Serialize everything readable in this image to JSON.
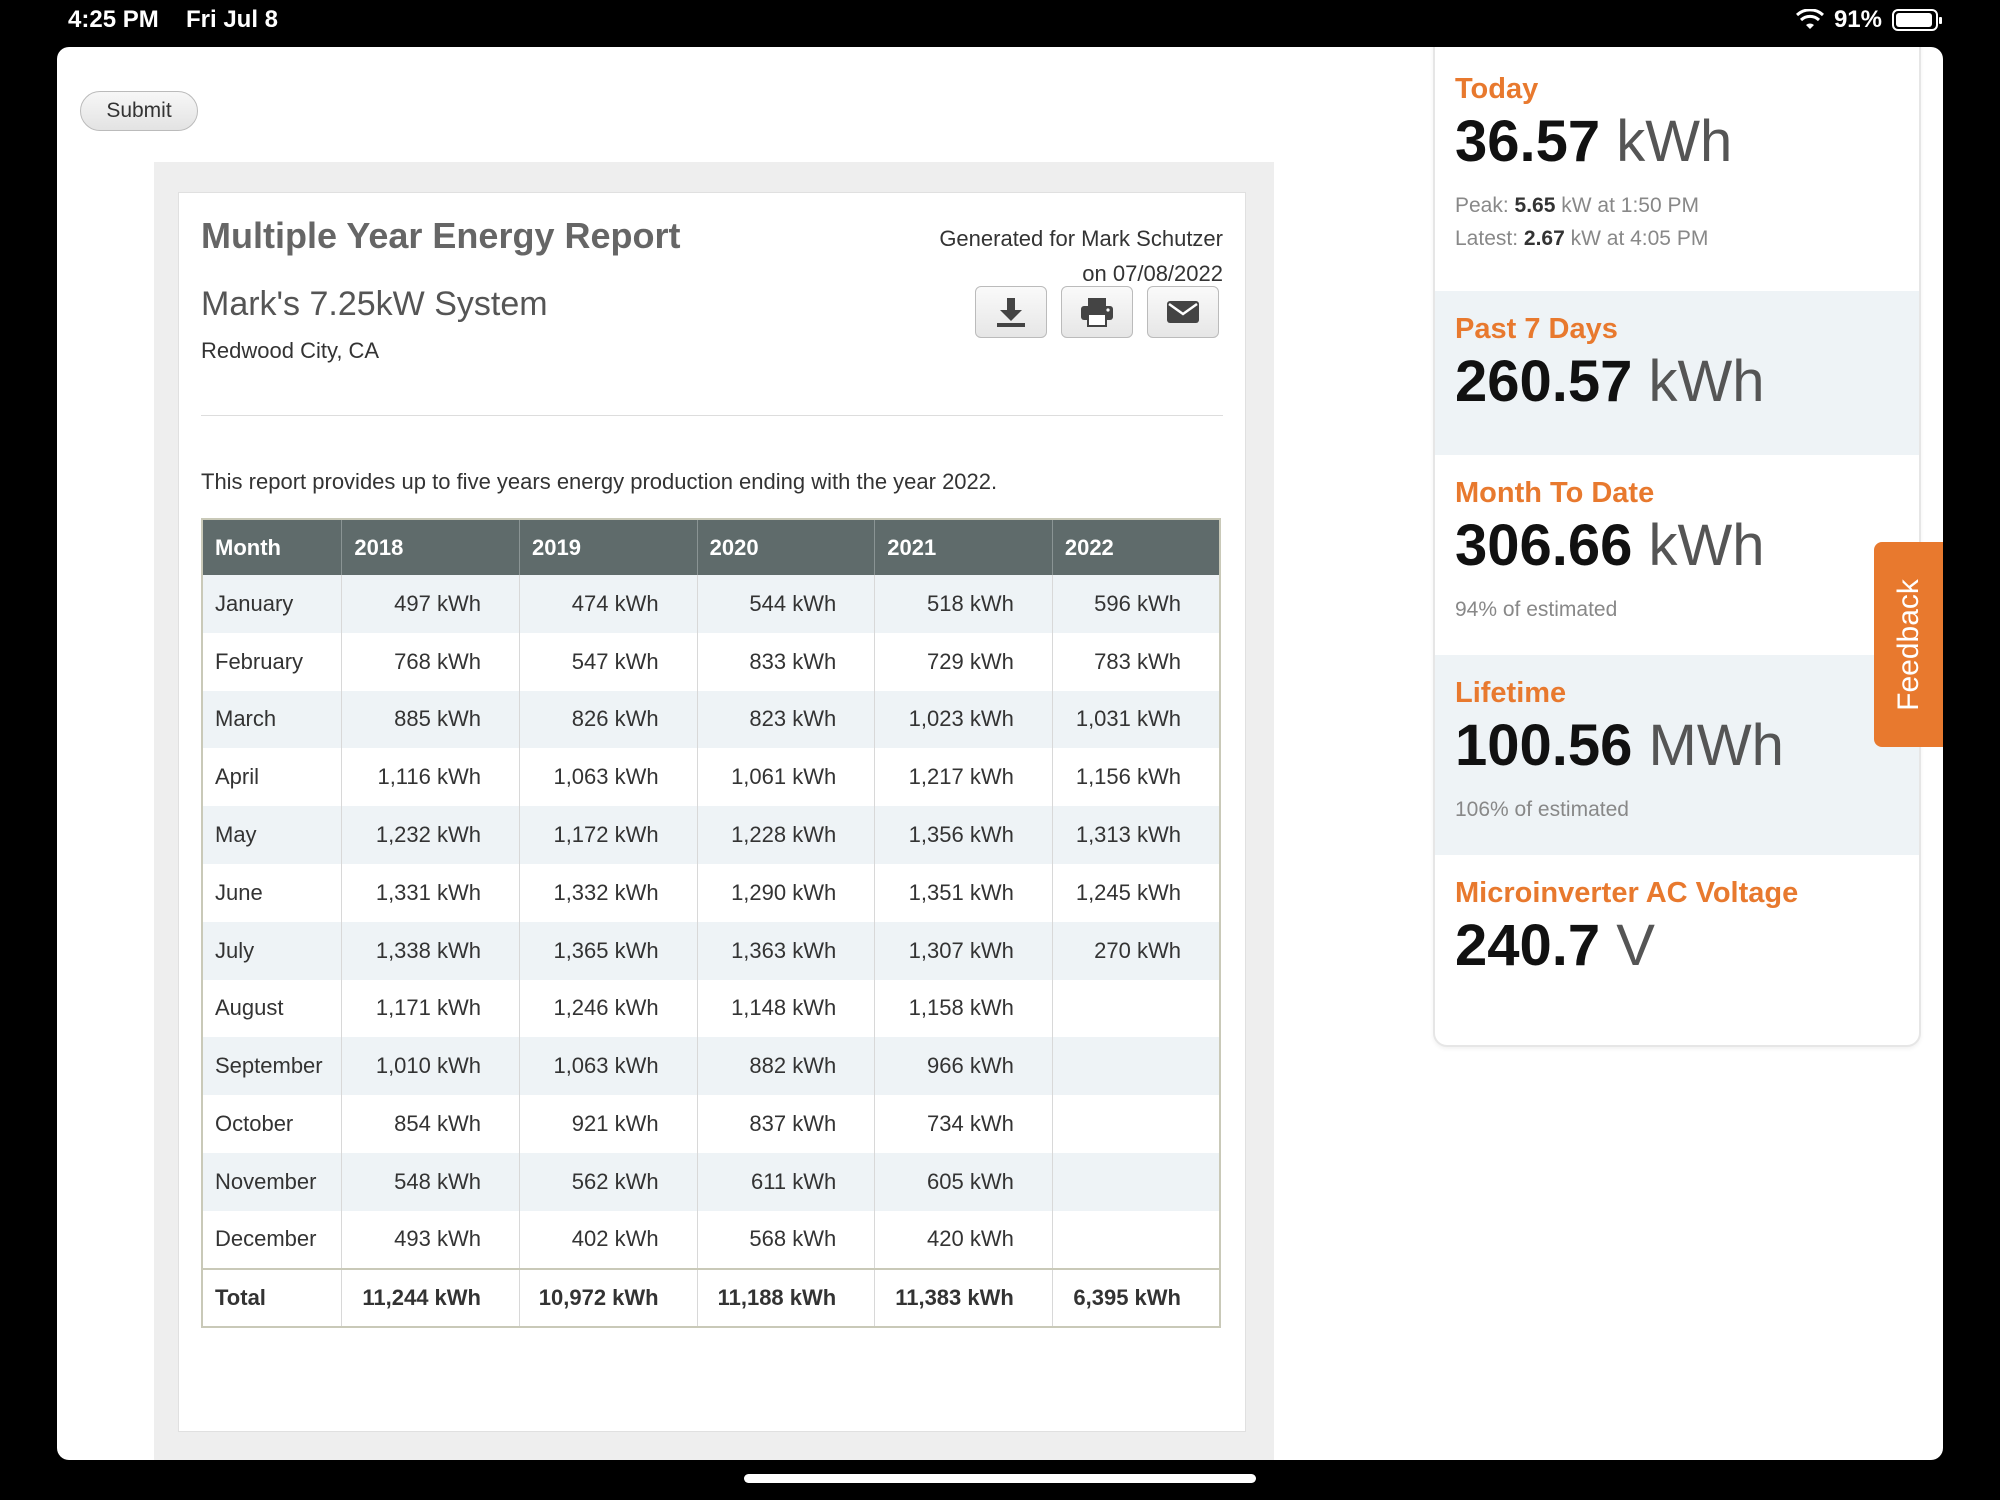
{
  "status_bar": {
    "time": "4:25 PM",
    "date": "Fri Jul 8",
    "battery": "91%"
  },
  "submit_label": "Submit",
  "report": {
    "title": "Multiple Year Energy Report",
    "system": "Mark's 7.25kW System",
    "location": "Redwood City, CA",
    "generated_line1": "Generated for Mark Schutzer",
    "generated_line2": "on 07/08/2022",
    "actions": [
      "download-icon",
      "print-icon",
      "email-icon"
    ],
    "description": "This report provides up to five years energy production ending with the year 2022.",
    "headers": [
      "Month",
      "2018",
      "2019",
      "2020",
      "2021",
      "2022"
    ],
    "rows": [
      [
        "January",
        "497 kWh",
        "474 kWh",
        "544 kWh",
        "518 kWh",
        "596 kWh"
      ],
      [
        "February",
        "768 kWh",
        "547 kWh",
        "833 kWh",
        "729 kWh",
        "783 kWh"
      ],
      [
        "March",
        "885 kWh",
        "826 kWh",
        "823 kWh",
        "1,023 kWh",
        "1,031 kWh"
      ],
      [
        "April",
        "1,116 kWh",
        "1,063 kWh",
        "1,061 kWh",
        "1,217 kWh",
        "1,156 kWh"
      ],
      [
        "May",
        "1,232 kWh",
        "1,172 kWh",
        "1,228 kWh",
        "1,356 kWh",
        "1,313 kWh"
      ],
      [
        "June",
        "1,331 kWh",
        "1,332 kWh",
        "1,290 kWh",
        "1,351 kWh",
        "1,245 kWh"
      ],
      [
        "July",
        "1,338 kWh",
        "1,365 kWh",
        "1,363 kWh",
        "1,307 kWh",
        "270 kWh"
      ],
      [
        "August",
        "1,171 kWh",
        "1,246 kWh",
        "1,148 kWh",
        "1,158 kWh",
        ""
      ],
      [
        "September",
        "1,010 kWh",
        "1,063 kWh",
        "882 kWh",
        "966 kWh",
        ""
      ],
      [
        "October",
        "854 kWh",
        "921 kWh",
        "837 kWh",
        "734 kWh",
        ""
      ],
      [
        "November",
        "548 kWh",
        "562 kWh",
        "611 kWh",
        "605 kWh",
        ""
      ],
      [
        "December",
        "493 kWh",
        "402 kWh",
        "568 kWh",
        "420 kWh",
        ""
      ]
    ],
    "total": [
      "Total",
      "11,244 kWh",
      "10,972 kWh",
      "11,188 kWh",
      "11,383 kWh",
      "6,395 kWh"
    ]
  },
  "stats": {
    "today": {
      "label": "Today",
      "value": "36.57",
      "unit": "kWh",
      "peak_label": "Peak:",
      "peak_value": "5.65",
      "peak_rest": "kW at 1:50 PM",
      "latest_label": "Latest:",
      "latest_value": "2.67",
      "latest_rest": "kW at 4:05 PM"
    },
    "past7": {
      "label": "Past 7 Days",
      "value": "260.57",
      "unit": "kWh"
    },
    "month": {
      "label": "Month To Date",
      "value": "306.66",
      "unit": "kWh",
      "note": "94% of estimated"
    },
    "lifetime": {
      "label": "Lifetime",
      "value": "100.56",
      "unit": "MWh",
      "note": "106% of estimated"
    },
    "voltage": {
      "label": "Microinverter AC Voltage",
      "value": "240.7",
      "unit": "V"
    }
  },
  "feedback_label": "Feedback",
  "colors": {
    "accent": "#e8792e",
    "table_header": "#5f6b6b",
    "row_alt": "#eef3f6"
  }
}
